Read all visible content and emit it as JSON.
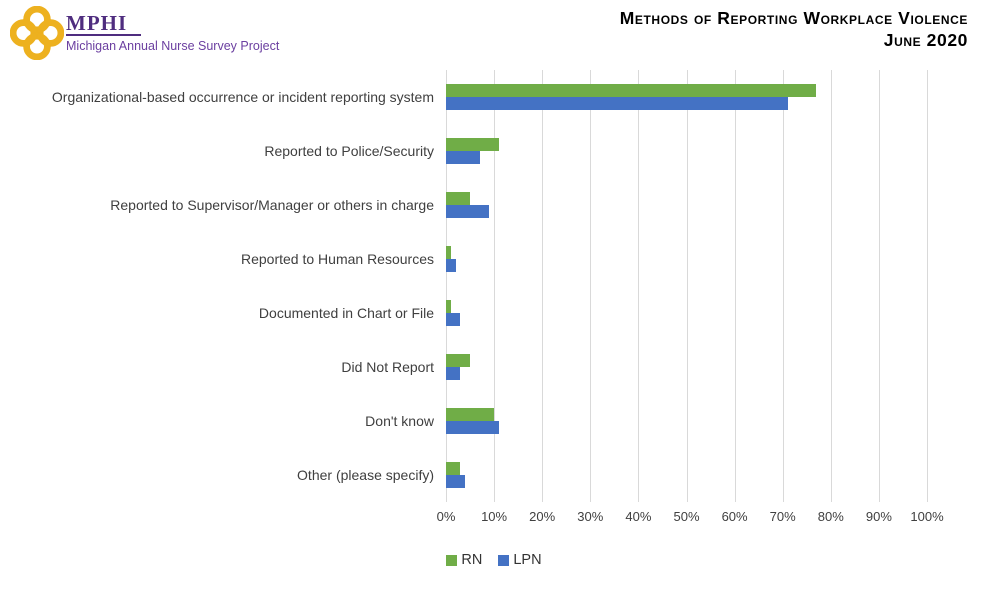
{
  "header": {
    "logo": {
      "acronym": "MPHI",
      "subtitle": "Michigan Annual Nurse Survey Project"
    },
    "title_line1": "Methods of Reporting Workplace Violence",
    "title_line2": "June 2020"
  },
  "colors": {
    "rn_green": "#70AD47",
    "lpn_blue": "#4472C4",
    "gridline": "#D9D9D9",
    "axis_text": "#404040",
    "logo_gold": "#EDB11F",
    "logo_purple": "#4F2D7F"
  },
  "chart_data": {
    "type": "bar",
    "orientation": "horizontal",
    "title": "Methods of Reporting Workplace Violence June 2020",
    "xlabel": "",
    "ylabel": "",
    "xlim": [
      0,
      100
    ],
    "x_unit": "%",
    "grid": "vertical",
    "legend_position": "bottom",
    "categories": [
      "Organizational-based occurrence or incident reporting system",
      "Reported to Police/Security",
      "Reported to Supervisor/Manager or others in charge",
      "Reported to Human Resources",
      "Documented in Chart or File",
      "Did Not Report",
      "Don't know",
      "Other (please specify)"
    ],
    "series": [
      {
        "name": "RN",
        "color": "#70AD47",
        "values": [
          77,
          11,
          5,
          1,
          1,
          5,
          10,
          3
        ]
      },
      {
        "name": "LPN",
        "color": "#4472C4",
        "values": [
          71,
          7,
          9,
          2,
          3,
          3,
          11,
          4
        ]
      }
    ],
    "x_ticks": [
      "0%",
      "10%",
      "20%",
      "30%",
      "40%",
      "50%",
      "60%",
      "70%",
      "80%",
      "90%",
      "100%"
    ]
  }
}
